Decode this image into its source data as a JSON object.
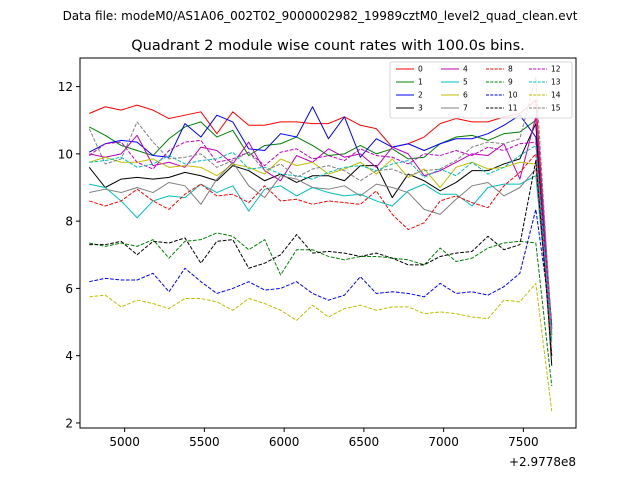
{
  "figure": {
    "suptitle": "Data file: modeM0/AS1A06_002T02_9000002982_19989cztM0_level2_quad_clean.evt"
  },
  "chart_data": {
    "type": "line",
    "title": "Quadrant 2 module wise count rates with 100.0s bins.",
    "xlabel": "",
    "ylabel": "",
    "x_offset_label": "+2.9778e8",
    "xlim": [
      4720,
      7830
    ],
    "ylim": [
      1.85,
      12.85
    ],
    "xticks": [
      5000,
      5500,
      6000,
      6500,
      7000,
      7500
    ],
    "yticks": [
      2,
      4,
      6,
      8,
      10,
      12
    ],
    "legend_position": "top-right",
    "legend_columns": 4,
    "x": [
      4778,
      4878,
      4978,
      5078,
      5178,
      5278,
      5378,
      5478,
      5578,
      5678,
      5778,
      5878,
      5978,
      6078,
      6178,
      6278,
      6378,
      6478,
      6578,
      6678,
      6778,
      6878,
      6978,
      7078,
      7178,
      7278,
      7378,
      7478,
      7578,
      7678
    ],
    "series": [
      {
        "name": "0",
        "color": "#ff0000",
        "dash": "solid",
        "values": [
          11.2,
          11.4,
          11.3,
          11.45,
          11.3,
          11.05,
          11.15,
          11.25,
          10.6,
          11.25,
          10.85,
          10.85,
          10.95,
          10.95,
          10.9,
          10.9,
          11.1,
          10.85,
          10.75,
          10.2,
          10.3,
          10.5,
          10.9,
          11.05,
          10.95,
          10.95,
          11.1,
          11.2,
          11.6,
          4.8
        ]
      },
      {
        "name": "1",
        "color": "#008000",
        "dash": "solid",
        "values": [
          10.8,
          10.55,
          10.25,
          10.1,
          9.95,
          10.45,
          10.8,
          10.95,
          10.5,
          10.7,
          9.95,
          10.25,
          10.3,
          10.5,
          10.25,
          9.95,
          10.0,
          10.25,
          10.0,
          10.15,
          9.85,
          9.9,
          10.3,
          10.5,
          10.55,
          10.4,
          10.6,
          10.65,
          11.0,
          4.6
        ]
      },
      {
        "name": "2",
        "color": "#0000ff",
        "dash": "solid",
        "values": [
          10.05,
          10.3,
          10.4,
          10.35,
          9.95,
          9.9,
          10.9,
          10.5,
          11.15,
          10.95,
          10.15,
          10.1,
          10.6,
          10.5,
          11.4,
          10.45,
          11.1,
          9.9,
          10.45,
          10.2,
          10.3,
          10.1,
          10.3,
          10.45,
          10.45,
          10.6,
          10.85,
          11.15,
          10.5,
          4.9
        ]
      },
      {
        "name": "3",
        "color": "#000000",
        "dash": "solid",
        "values": [
          9.6,
          9.0,
          9.25,
          9.3,
          9.25,
          9.3,
          9.45,
          9.35,
          9.2,
          9.65,
          9.5,
          9.2,
          9.4,
          9.15,
          9.35,
          9.35,
          9.2,
          9.65,
          9.65,
          8.7,
          9.4,
          9.2,
          8.9,
          9.15,
          9.5,
          9.5,
          9.7,
          9.85,
          10.9,
          3.7
        ]
      },
      {
        "name": "4",
        "color": "#bf00bf",
        "dash": "solid",
        "values": [
          10.0,
          9.9,
          10.0,
          10.55,
          9.65,
          9.75,
          9.6,
          10.2,
          10.1,
          9.7,
          10.35,
          9.5,
          9.2,
          9.95,
          9.75,
          10.15,
          9.9,
          10.0,
          9.6,
          10.2,
          10.0,
          9.35,
          9.5,
          9.75,
          10.0,
          9.95,
          10.3,
          9.25,
          11.1,
          4.8
        ]
      },
      {
        "name": "5",
        "color": "#00bfbf",
        "dash": "solid",
        "values": [
          9.1,
          9.0,
          8.6,
          8.1,
          8.6,
          8.75,
          8.7,
          9.1,
          8.85,
          9.05,
          8.3,
          8.95,
          9.05,
          8.75,
          9.0,
          8.85,
          8.75,
          8.8,
          8.6,
          8.45,
          8.9,
          9.1,
          8.8,
          8.8,
          8.45,
          9.0,
          9.1,
          9.1,
          9.35,
          4.4
        ]
      },
      {
        "name": "6",
        "color": "#bfbf00",
        "dash": "solid",
        "values": [
          9.75,
          9.9,
          9.75,
          9.75,
          9.85,
          9.6,
          9.65,
          9.6,
          9.35,
          9.7,
          9.6,
          9.4,
          9.85,
          9.65,
          9.75,
          9.4,
          9.55,
          9.75,
          9.4,
          9.85,
          9.3,
          9.55,
          9.0,
          9.6,
          9.75,
          9.55,
          9.6,
          9.75,
          9.7,
          4.6
        ]
      },
      {
        "name": "7",
        "color": "#808080",
        "dash": "solid",
        "values": [
          8.85,
          8.95,
          8.85,
          9.0,
          8.85,
          9.15,
          9.05,
          8.5,
          9.25,
          9.75,
          9.05,
          8.7,
          9.35,
          9.25,
          9.0,
          8.95,
          9.05,
          8.75,
          9.1,
          9.0,
          8.85,
          8.35,
          8.2,
          8.65,
          9.05,
          9.15,
          8.75,
          9.0,
          9.55,
          4.7
        ]
      },
      {
        "name": "8",
        "color": "#ff0000",
        "dash": "dashed",
        "values": [
          8.6,
          8.45,
          8.6,
          8.95,
          8.6,
          8.35,
          8.8,
          9.1,
          8.75,
          8.8,
          8.55,
          9.05,
          8.6,
          8.65,
          8.5,
          8.6,
          8.55,
          8.5,
          8.9,
          8.2,
          7.75,
          7.95,
          8.6,
          8.75,
          8.55,
          8.4,
          9.05,
          9.45,
          10.0,
          4.0
        ]
      },
      {
        "name": "9",
        "color": "#008000",
        "dash": "dashed",
        "values": [
          7.35,
          7.25,
          7.35,
          7.25,
          7.45,
          6.9,
          7.4,
          7.45,
          7.65,
          7.55,
          7.15,
          7.45,
          6.4,
          7.15,
          7.15,
          6.95,
          6.85,
          6.95,
          6.95,
          6.9,
          6.85,
          6.7,
          7.2,
          6.8,
          6.9,
          7.2,
          7.35,
          7.4,
          7.35,
          3.1
        ]
      },
      {
        "name": "10",
        "color": "#0000ff",
        "dash": "dashed",
        "values": [
          6.2,
          6.3,
          6.25,
          6.25,
          6.45,
          5.9,
          6.6,
          6.2,
          5.85,
          6.0,
          6.2,
          5.95,
          6.0,
          6.2,
          5.85,
          5.65,
          5.8,
          6.35,
          5.85,
          5.9,
          5.85,
          5.75,
          6.15,
          5.85,
          5.9,
          5.8,
          6.05,
          6.45,
          8.35,
          4.9
        ]
      },
      {
        "name": "11",
        "color": "#000000",
        "dash": "dashed",
        "values": [
          7.3,
          7.3,
          7.4,
          7.0,
          7.4,
          7.35,
          7.5,
          6.75,
          7.4,
          7.45,
          6.6,
          6.75,
          7.0,
          7.6,
          7.05,
          7.1,
          7.05,
          6.95,
          7.05,
          6.9,
          6.7,
          6.7,
          6.95,
          7.05,
          7.1,
          7.55,
          7.15,
          7.3,
          9.8,
          4.0
        ]
      },
      {
        "name": "12",
        "color": "#bf00bf",
        "dash": "dashed",
        "values": [
          9.95,
          10.3,
          10.35,
          9.75,
          9.55,
          10.1,
          10.35,
          10.4,
          9.75,
          9.85,
          10.05,
          9.65,
          10.05,
          10.15,
          9.85,
          9.95,
          9.8,
          10.15,
          9.95,
          9.9,
          9.7,
          10.0,
          9.95,
          10.1,
          9.95,
          10.2,
          10.1,
          10.3,
          10.35,
          4.7
        ]
      },
      {
        "name": "13",
        "color": "#00bfbf",
        "dash": "dashed",
        "values": [
          9.75,
          9.8,
          9.9,
          9.6,
          9.7,
          9.95,
          9.7,
          9.8,
          9.85,
          10.05,
          9.55,
          9.6,
          9.4,
          9.35,
          9.25,
          9.45,
          9.6,
          9.65,
          9.5,
          9.7,
          9.8,
          9.3,
          9.55,
          9.35,
          9.75,
          9.4,
          9.6,
          9.95,
          10.25,
          4.5
        ]
      },
      {
        "name": "14",
        "color": "#bfbf00",
        "dash": "dashed",
        "values": [
          5.75,
          5.8,
          5.45,
          5.65,
          5.55,
          5.4,
          5.7,
          5.7,
          5.6,
          5.35,
          5.7,
          5.55,
          5.35,
          5.05,
          5.5,
          5.15,
          5.4,
          5.5,
          5.35,
          5.45,
          5.45,
          5.25,
          5.3,
          5.25,
          5.15,
          5.1,
          5.65,
          5.6,
          6.15,
          2.35
        ]
      },
      {
        "name": "15",
        "color": "#808080",
        "dash": "dashed",
        "values": [
          10.75,
          9.7,
          9.85,
          10.95,
          10.35,
          9.85,
          9.9,
          10.0,
          9.6,
          9.8,
          10.05,
          9.5,
          9.7,
          9.3,
          9.55,
          9.65,
          9.5,
          9.2,
          9.5,
          9.55,
          9.35,
          9.5,
          9.55,
          9.8,
          10.2,
          10.35,
          10.3,
          10.45,
          12.3,
          4.6
        ]
      }
    ]
  }
}
